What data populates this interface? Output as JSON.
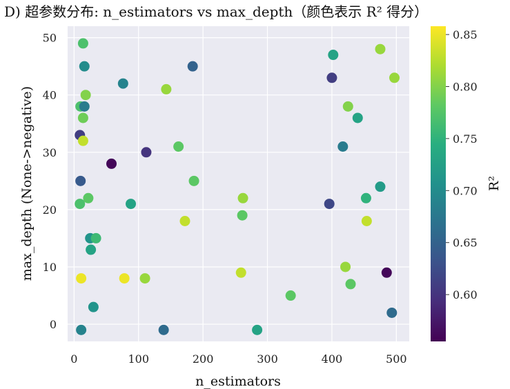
{
  "chart_data": {
    "type": "scatter",
    "title": "D) 超参数分布: n_estimators vs max_depth（颜色表示 R² 得分）",
    "xlabel": "n_estimators",
    "ylabel": "max_depth (None->negative)",
    "xlim": [
      -10,
      520
    ],
    "ylim": [
      -3,
      52
    ],
    "xticks": [
      0,
      100,
      200,
      300,
      400,
      500
    ],
    "xtick_labels": [
      "0",
      "100",
      "200",
      "300",
      "400",
      "500"
    ],
    "yticks": [
      0,
      10,
      20,
      30,
      40,
      50
    ],
    "ytick_labels": [
      "0",
      "10",
      "20",
      "30",
      "40",
      "50"
    ],
    "grid": true,
    "background": "#eaeaf2",
    "colormap": "viridis",
    "colorbar": {
      "label": "R²",
      "range": [
        0.555,
        0.858
      ],
      "ticks": [
        0.6,
        0.65,
        0.7,
        0.75,
        0.8,
        0.85
      ],
      "tick_labels": [
        "0.60",
        "0.65",
        "0.70",
        "0.75",
        "0.80",
        "0.85"
      ]
    },
    "points": [
      {
        "x": 14,
        "y": 49,
        "r2": 0.77
      },
      {
        "x": 16,
        "y": 45,
        "r2": 0.7
      },
      {
        "x": 18,
        "y": 40,
        "r2": 0.8
      },
      {
        "x": 10,
        "y": 38,
        "r2": 0.77
      },
      {
        "x": 16,
        "y": 38,
        "r2": 0.68
      },
      {
        "x": 14,
        "y": 36,
        "r2": 0.79
      },
      {
        "x": 9,
        "y": 33,
        "r2": 0.61
      },
      {
        "x": 14,
        "y": 32,
        "r2": 0.83
      },
      {
        "x": 10,
        "y": 25,
        "r2": 0.64
      },
      {
        "x": 9,
        "y": 21,
        "r2": 0.77
      },
      {
        "x": 22,
        "y": 22,
        "r2": 0.78
      },
      {
        "x": 25,
        "y": 15,
        "r2": 0.71
      },
      {
        "x": 34,
        "y": 15,
        "r2": 0.76
      },
      {
        "x": 26,
        "y": 13,
        "r2": 0.73
      },
      {
        "x": 11,
        "y": 8,
        "r2": 0.85
      },
      {
        "x": 30,
        "y": 3,
        "r2": 0.71
      },
      {
        "x": 11,
        "y": -1,
        "r2": 0.69
      },
      {
        "x": 58,
        "y": 28,
        "r2": 0.56
      },
      {
        "x": 76,
        "y": 42,
        "r2": 0.69
      },
      {
        "x": 78,
        "y": 8,
        "r2": 0.85
      },
      {
        "x": 88,
        "y": 21,
        "r2": 0.73
      },
      {
        "x": 112,
        "y": 30,
        "r2": 0.6
      },
      {
        "x": 110,
        "y": 8,
        "r2": 0.81
      },
      {
        "x": 143,
        "y": 41,
        "r2": 0.81
      },
      {
        "x": 139,
        "y": -1,
        "r2": 0.66
      },
      {
        "x": 162,
        "y": 31,
        "r2": 0.78
      },
      {
        "x": 172,
        "y": 18,
        "r2": 0.83
      },
      {
        "x": 184,
        "y": 45,
        "r2": 0.65
      },
      {
        "x": 186,
        "y": 25,
        "r2": 0.78
      },
      {
        "x": 262,
        "y": 22,
        "r2": 0.81
      },
      {
        "x": 261,
        "y": 19,
        "r2": 0.78
      },
      {
        "x": 259,
        "y": 9,
        "r2": 0.83
      },
      {
        "x": 284,
        "y": -1,
        "r2": 0.73
      },
      {
        "x": 336,
        "y": 5,
        "r2": 0.78
      },
      {
        "x": 396,
        "y": 21,
        "r2": 0.62
      },
      {
        "x": 400,
        "y": 43,
        "r2": 0.61
      },
      {
        "x": 402,
        "y": 47,
        "r2": 0.73
      },
      {
        "x": 417,
        "y": 31,
        "r2": 0.68
      },
      {
        "x": 421,
        "y": 10,
        "r2": 0.81
      },
      {
        "x": 425,
        "y": 38,
        "r2": 0.8
      },
      {
        "x": 429,
        "y": 7,
        "r2": 0.78
      },
      {
        "x": 440,
        "y": 36,
        "r2": 0.73
      },
      {
        "x": 453,
        "y": 22,
        "r2": 0.75
      },
      {
        "x": 454,
        "y": 18,
        "r2": 0.83
      },
      {
        "x": 475,
        "y": 24,
        "r2": 0.72
      },
      {
        "x": 475,
        "y": 48,
        "r2": 0.81
      },
      {
        "x": 485,
        "y": 9,
        "r2": 0.56
      },
      {
        "x": 493,
        "y": 2,
        "r2": 0.66
      },
      {
        "x": 497,
        "y": 43,
        "r2": 0.81
      }
    ]
  }
}
